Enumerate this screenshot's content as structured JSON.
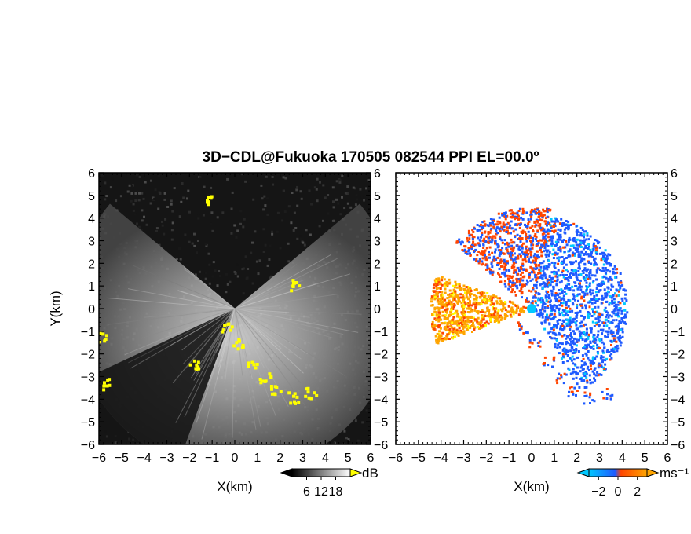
{
  "title": "3D−CDL@Fukuoka 170505 082544 PPI EL=00.0º",
  "colors": {
    "panel_dark": "#151515",
    "sector_grey": "#bdbdbd",
    "sector_dim": "#3a3a3a",
    "yellow": "#ffff00",
    "orange": "#ffa500",
    "orange_red": "#ff4500",
    "blue": "#1e5aff",
    "cyan": "#00c8ff",
    "background": "#ffffff"
  },
  "chart_data": [
    {
      "type": "heatmap",
      "panel": "left",
      "quantity": "SNR",
      "xlabel": "X(km)",
      "ylabel": "Y(km)",
      "xlim": [
        -6,
        6
      ],
      "ylim": [
        -6,
        6
      ],
      "x_ticks": [
        "−6",
        "−5",
        "−4",
        "−3",
        "−2",
        "−1",
        "0",
        "1",
        "2",
        "3",
        "4",
        "5",
        "6"
      ],
      "y_ticks": [
        "−6",
        "−5",
        "−4",
        "−3",
        "−2",
        "−1",
        "0",
        "1",
        "2",
        "3",
        "4",
        "5",
        "6"
      ],
      "colorbar": {
        "unit": "dB",
        "ticks": [
          "6",
          "12",
          "18"
        ],
        "range": [
          0,
          24
        ],
        "colors": [
          "#000000",
          "#ffffff"
        ],
        "extend_max_color": "#ffff00"
      },
      "echo_regions": [
        {
          "kind": "bright-sector",
          "az_from_deg": 140,
          "az_to_deg": 400,
          "range_km": [
            0,
            6
          ]
        },
        {
          "kind": "dark-sector",
          "az_from_deg": 205,
          "az_to_deg": 250,
          "range_km": [
            0,
            6
          ]
        }
      ],
      "saturated_targets": [
        {
          "x_km": -0.4,
          "y_km": -0.8
        },
        {
          "x_km": 0.1,
          "y_km": -1.5
        },
        {
          "x_km": 0.7,
          "y_km": -2.3
        },
        {
          "x_km": 1.3,
          "y_km": -3.0
        },
        {
          "x_km": 1.8,
          "y_km": -3.6
        },
        {
          "x_km": 2.5,
          "y_km": -3.9
        },
        {
          "x_km": 3.3,
          "y_km": -3.7
        },
        {
          "x_km": -5.9,
          "y_km": -1.2
        },
        {
          "x_km": -5.8,
          "y_km": -3.3
        },
        {
          "x_km": -1.8,
          "y_km": -2.4
        },
        {
          "x_km": 2.6,
          "y_km": 1.1
        },
        {
          "x_km": -1.3,
          "y_km": 4.8
        }
      ]
    },
    {
      "type": "heatmap",
      "panel": "right",
      "quantity": "Doppler velocity",
      "xlabel": "X(km)",
      "ylabel": "",
      "xlim": [
        -6,
        6
      ],
      "ylim": [
        -6,
        6
      ],
      "x_ticks": [
        "−6",
        "−5",
        "−4",
        "−3",
        "−2",
        "−1",
        "0",
        "1",
        "2",
        "3",
        "4",
        "5",
        "6"
      ],
      "y_ticks": [
        "−6",
        "−5",
        "−4",
        "−3",
        "−2",
        "−1",
        "0",
        "1",
        "2",
        "3",
        "4",
        "5",
        "6"
      ],
      "colorbar": {
        "unit": "ms⁻¹",
        "ticks": [
          "−2",
          "0",
          "2"
        ],
        "range": [
          -3,
          3
        ],
        "colors": [
          "#00c8ff",
          "#1e5aff",
          "#ff4500",
          "#ffa500"
        ]
      },
      "echo_regions": [
        {
          "kind": "receding",
          "color": "#ffa500",
          "az_from_deg": 160,
          "az_to_deg": 200,
          "range_km": [
            0,
            4.5
          ]
        },
        {
          "kind": "approaching",
          "color": "#1e5aff",
          "az_from_deg": -60,
          "az_to_deg": 80,
          "range_km": [
            0,
            4.2
          ]
        },
        {
          "kind": "mixed",
          "color": "#ff4500",
          "az_from_deg": 80,
          "az_to_deg": 140,
          "range_km": [
            0,
            4.5
          ]
        }
      ]
    }
  ]
}
